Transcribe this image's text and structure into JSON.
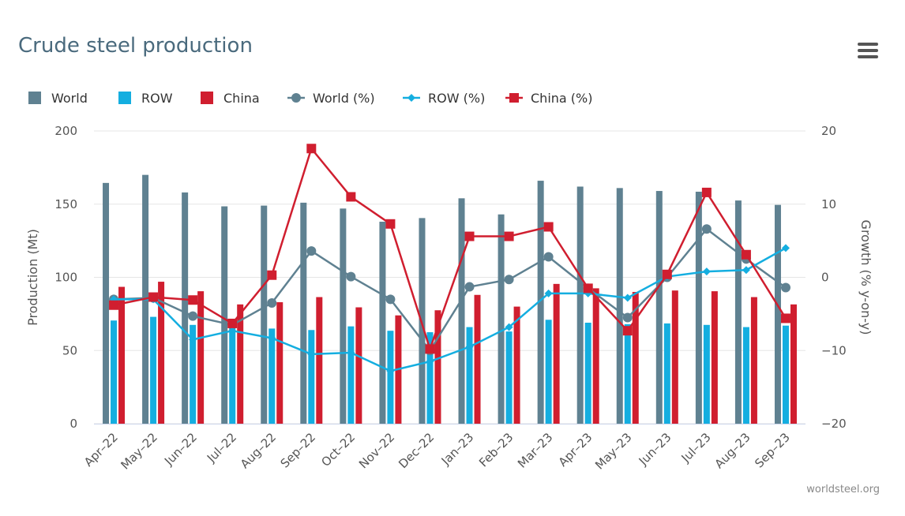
{
  "chart_data": {
    "type": "bar",
    "title": "Crude steel production",
    "categories": [
      "Apr-22",
      "May-22",
      "Jun-22",
      "Jul-22",
      "Aug-22",
      "Sep-22",
      "Oct-22",
      "Nov-22",
      "Dec-22",
      "Jan-23",
      "Feb-23",
      "Mar-23",
      "Apr-23",
      "May-23",
      "Jun-23",
      "Jul-23",
      "Aug-23",
      "Sep-23"
    ],
    "ylabel": "Production (Mt)",
    "y2label": "Growth (% y-on-y)",
    "ylim": [
      0,
      200
    ],
    "y2lim": [
      -20,
      20
    ],
    "yticks": [
      0,
      50,
      100,
      150,
      200
    ],
    "y2ticks": [
      -20,
      -10,
      0,
      10,
      20
    ],
    "grid": true,
    "legend_position": "top-left",
    "series": [
      {
        "name": "World",
        "kind": "bar",
        "axis": "left",
        "color": "#5f8191",
        "values": [
          164.5,
          170.0,
          158.0,
          148.5,
          149.0,
          151.0,
          147.0,
          138.0,
          140.5,
          154.0,
          143.0,
          166.0,
          162.0,
          161.0,
          159.0,
          158.5,
          152.5,
          149.5
        ]
      },
      {
        "name": "ROW",
        "kind": "bar",
        "axis": "left",
        "color": "#14aee0",
        "values": [
          70.5,
          73.0,
          67.5,
          66.5,
          65.0,
          64.0,
          66.5,
          63.5,
          62.5,
          66.0,
          63.0,
          71.0,
          69.0,
          68.0,
          68.5,
          67.5,
          66.0,
          67.0
        ]
      },
      {
        "name": "China",
        "kind": "bar",
        "axis": "left",
        "color": "#d01e2f",
        "values": [
          93.5,
          97.0,
          90.5,
          81.5,
          83.0,
          86.5,
          79.5,
          74.0,
          77.5,
          88.0,
          80.0,
          95.5,
          92.5,
          90.0,
          91.0,
          90.5,
          86.5,
          81.5
        ]
      },
      {
        "name": "World (%)",
        "kind": "line",
        "marker": "circle",
        "axis": "right",
        "color": "#5f8191",
        "values": [
          -3.0,
          -2.8,
          -5.3,
          -6.5,
          -3.5,
          3.6,
          0.1,
          -3.0,
          -10.0,
          -1.3,
          -0.3,
          2.8,
          -1.5,
          -5.5,
          0.0,
          6.6,
          2.5,
          -1.4
        ]
      },
      {
        "name": "ROW (%)",
        "kind": "line",
        "marker": "diamond",
        "axis": "right",
        "color": "#14aee0",
        "values": [
          -3.0,
          -3.0,
          -8.5,
          -7.3,
          -8.3,
          -10.5,
          -10.3,
          -12.8,
          -11.5,
          -9.5,
          -6.8,
          -2.2,
          -2.2,
          -2.8,
          0.1,
          0.8,
          1.0,
          4.0
        ]
      },
      {
        "name": "China (%)",
        "kind": "line",
        "marker": "square",
        "axis": "right",
        "color": "#d01e2f",
        "values": [
          -3.8,
          -2.7,
          -3.1,
          -6.3,
          0.3,
          17.6,
          11.0,
          7.3,
          -9.8,
          5.6,
          5.6,
          6.9,
          -1.5,
          -7.3,
          0.4,
          11.6,
          3.1,
          -5.6
        ]
      }
    ]
  },
  "credit": "worldsteel.org",
  "menu_icon": "hamburger-menu-icon"
}
